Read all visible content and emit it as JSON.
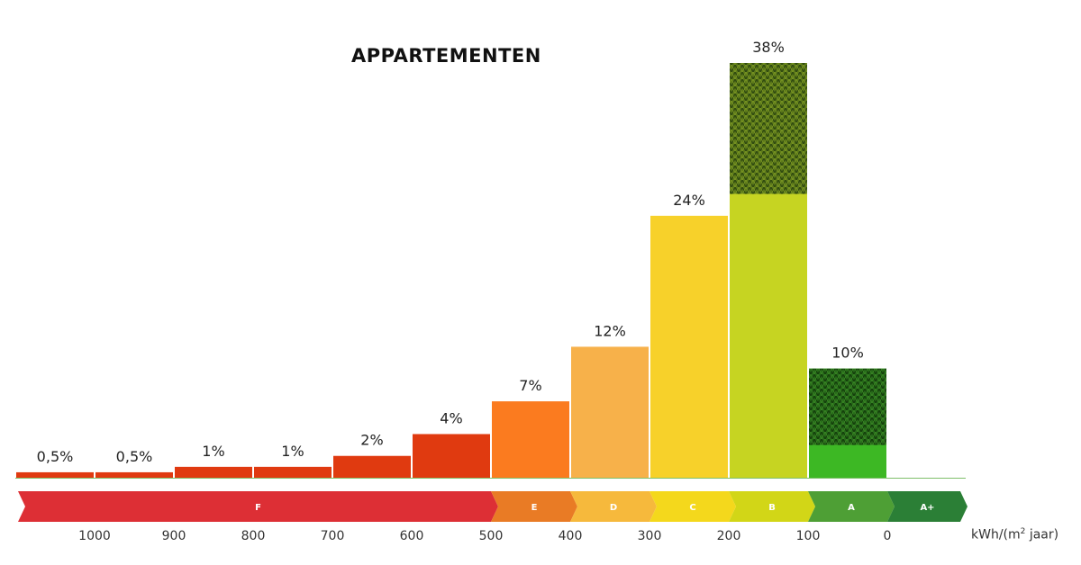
{
  "chart_data": {
    "type": "bar",
    "title": "APPARTEMENTEN",
    "bars": [
      {
        "from": 1100,
        "to": 1000,
        "value": 0.5,
        "label": "0,5%",
        "color": "#e03a10"
      },
      {
        "from": 1000,
        "to": 900,
        "value": 0.5,
        "label": "0,5%",
        "color": "#e03a10"
      },
      {
        "from": 900,
        "to": 800,
        "value": 1,
        "label": "1%",
        "color": "#e03a10"
      },
      {
        "from": 800,
        "to": 700,
        "value": 1,
        "label": "1%",
        "color": "#e03a10"
      },
      {
        "from": 700,
        "to": 600,
        "value": 2,
        "label": "2%",
        "color": "#e03a10"
      },
      {
        "from": 600,
        "to": 500,
        "value": 4,
        "label": "4%",
        "color": "#e03a10"
      },
      {
        "from": 500,
        "to": 400,
        "value": 7,
        "label": "7%",
        "color": "#fb7b1f"
      },
      {
        "from": 400,
        "to": 300,
        "value": 12,
        "label": "12%",
        "color": "#f7b14a"
      },
      {
        "from": 300,
        "to": 200,
        "value": 24,
        "label": "24%",
        "color": "#f7d12a"
      },
      {
        "from": 200,
        "to": 100,
        "value": 38,
        "label": "38%",
        "color": "#c6d422",
        "hatched_above": 26
      },
      {
        "from": 100,
        "to": 0,
        "value": 10,
        "label": "10%",
        "color": "#3db824",
        "hatched_above": 3
      }
    ],
    "ylim": [
      0,
      38
    ],
    "x_axis": {
      "ticks": [
        1000,
        900,
        800,
        700,
        600,
        500,
        400,
        300,
        200,
        100,
        0
      ],
      "tick_labels": [
        "1000",
        "900",
        "800",
        "700",
        "600",
        "500",
        "400",
        "300",
        "200",
        "100",
        "0"
      ],
      "unit_label": "kWh/(m² jaar)",
      "reversed": true
    },
    "label_bands": [
      {
        "label": "F",
        "from": 1100,
        "to": 500,
        "color": "#dd2f35"
      },
      {
        "label": "E",
        "from": 500,
        "to": 400,
        "color": "#e97b25"
      },
      {
        "label": "D",
        "from": 400,
        "to": 300,
        "color": "#f6b93c"
      },
      {
        "label": "C",
        "from": 300,
        "to": 200,
        "color": "#f4d81c"
      },
      {
        "label": "B",
        "from": 200,
        "to": 100,
        "color": "#d2d617"
      },
      {
        "label": "A",
        "from": 100,
        "to": 0,
        "color": "#4e9f35"
      },
      {
        "label": "A+",
        "from": 0,
        "to": -100,
        "color": "#2b7f36"
      }
    ],
    "grid": false,
    "hatch_color": "#3a5a14"
  }
}
